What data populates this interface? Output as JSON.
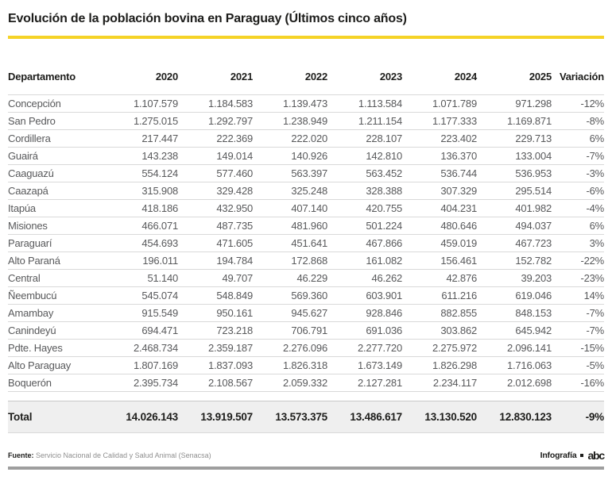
{
  "title": "Evolución de la población bovina en Paraguay (Últimos cinco años)",
  "chart_data": {
    "type": "table",
    "columns": [
      "Departamento",
      "2020",
      "2021",
      "2022",
      "2023",
      "2024",
      "2025",
      "Variación"
    ],
    "rows": [
      {
        "department": "Concepción",
        "values": [
          "1.107.579",
          "1.184.583",
          "1.139.473",
          "1.113.584",
          "1.071.789",
          "971.298"
        ],
        "variation": "-12%"
      },
      {
        "department": "San Pedro",
        "values": [
          "1.275.015",
          "1.292.797",
          "1.238.949",
          "1.211.154",
          "1.177.333",
          "1.169.871"
        ],
        "variation": "-8%"
      },
      {
        "department": "Cordillera",
        "values": [
          "217.447",
          "222.369",
          "222.020",
          "228.107",
          "223.402",
          "229.713"
        ],
        "variation": "6%"
      },
      {
        "department": "Guairá",
        "values": [
          "143.238",
          "149.014",
          "140.926",
          "142.810",
          "136.370",
          "133.004"
        ],
        "variation": "-7%"
      },
      {
        "department": "Caaguazú",
        "values": [
          "554.124",
          "577.460",
          "563.397",
          "563.452",
          "536.744",
          "536.953"
        ],
        "variation": "-3%"
      },
      {
        "department": "Caazapá",
        "values": [
          "315.908",
          "329.428",
          "325.248",
          "328.388",
          "307.329",
          "295.514"
        ],
        "variation": "-6%"
      },
      {
        "department": "Itapúa",
        "values": [
          "418.186",
          "432.950",
          "407.140",
          "420.755",
          "404.231",
          "401.982"
        ],
        "variation": "-4%"
      },
      {
        "department": "Misiones",
        "values": [
          "466.071",
          "487.735",
          "481.960",
          "501.224",
          "480.646",
          "494.037"
        ],
        "variation": "6%"
      },
      {
        "department": "Paraguarí",
        "values": [
          "454.693",
          "471.605",
          "451.641",
          "467.866",
          "459.019",
          "467.723"
        ],
        "variation": "3%"
      },
      {
        "department": "Alto Paraná",
        "values": [
          "196.011",
          "194.784",
          "172.868",
          "161.082",
          "156.461",
          "152.782"
        ],
        "variation": "-22%"
      },
      {
        "department": "Central",
        "values": [
          "51.140",
          "49.707",
          "46.229",
          "46.262",
          "42.876",
          "39.203"
        ],
        "variation": "-23%"
      },
      {
        "department": "Ñeembucú",
        "values": [
          "545.074",
          "548.849",
          "569.360",
          "603.901",
          "611.216",
          "619.046"
        ],
        "variation": "14%"
      },
      {
        "department": "Amambay",
        "values": [
          "915.549",
          "950.161",
          "945.627",
          "928.846",
          "882.855",
          "848.153"
        ],
        "variation": "-7%"
      },
      {
        "department": "Canindeyú",
        "values": [
          "694.471",
          "723.218",
          "706.791",
          "691.036",
          "303.862",
          "645.942"
        ],
        "variation": "-7%"
      },
      {
        "department": "Pdte. Hayes",
        "values": [
          "2.468.734",
          "2.359.187",
          "2.276.096",
          "2.277.720",
          "2.275.972",
          "2.096.141"
        ],
        "variation": "-15%"
      },
      {
        "department": "Alto Paraguay",
        "values": [
          "1.807.169",
          "1.837.093",
          "1.826.318",
          "1.673.149",
          "1.826.298",
          "1.716.063"
        ],
        "variation": "-5%"
      },
      {
        "department": "Boquerón",
        "values": [
          "2.395.734",
          "2.108.567",
          "2.059.332",
          "2.127.281",
          "2.234.117",
          "2.012.698"
        ],
        "variation": "-16%"
      }
    ],
    "total": {
      "label": "Total",
      "values": [
        "14.026.143",
        "13.919.507",
        "13.573.375",
        "13.486.617",
        "13.130.520",
        "12.830.123"
      ],
      "variation": "-9%"
    }
  },
  "footer": {
    "source_label": "Fuente:",
    "source_text": "Servicio Nacional de Calidad y Salud Animal (Senacsa)",
    "credit_label": "Infografía",
    "logo_text": "abc"
  },
  "colors": {
    "accent_yellow": "#F5D327",
    "body_text_gray": "#58595B",
    "row_separator": "#D9D9D9",
    "total_row_bg": "#EFEFEF",
    "bottom_bar_gray": "#9E9E9E"
  }
}
